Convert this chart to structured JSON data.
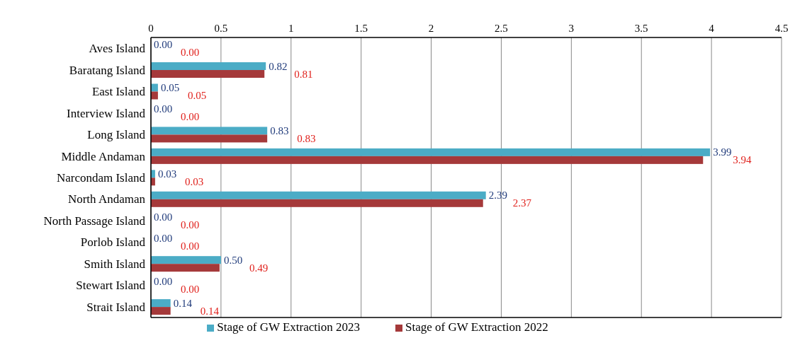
{
  "chart_data": {
    "type": "bar",
    "orientation": "horizontal",
    "categories": [
      "Aves Island",
      "Baratang Island",
      "East Island",
      "Interview Island",
      "Long Island",
      "Middle Andaman",
      "Narcondam Island",
      "North Andaman",
      "North Passage Island",
      "Porlob Island",
      "Smith Island",
      "Stewart Island",
      "Strait Island"
    ],
    "series": [
      {
        "name": "Stage of GW Extraction 2023",
        "color": "#4bacc6",
        "values": [
          0,
          0.82,
          0.05,
          0,
          0.83,
          3.99,
          0.03,
          2.39,
          0,
          0,
          0.5,
          0,
          0.14
        ],
        "value_labels": [
          "0.00",
          "0.82",
          "0.05",
          "0.00",
          "0.83",
          "3.99",
          "0.03",
          "2.39",
          "0.00",
          "0.00",
          "0.50",
          "0.00",
          "0.14"
        ]
      },
      {
        "name": "Stage of GW Extraction 2022",
        "color": "#a5393a",
        "values": [
          0,
          0.81,
          0.05,
          0,
          0.83,
          3.94,
          0.03,
          2.37,
          0,
          0,
          0.49,
          0,
          0.14
        ],
        "value_labels": [
          "0.00",
          "0.81",
          "0.05",
          "0.00",
          "0.83",
          "3.94",
          "0.03",
          "2.37",
          "0.00",
          "0.00",
          "0.49",
          "0.00",
          "0.14"
        ]
      }
    ],
    "xlim": [
      0,
      4.5
    ],
    "xticks": [
      0,
      0.5,
      1,
      1.5,
      2,
      2.5,
      3,
      3.5,
      4,
      4.5
    ],
    "grid": "x",
    "legend": "bottom"
  }
}
